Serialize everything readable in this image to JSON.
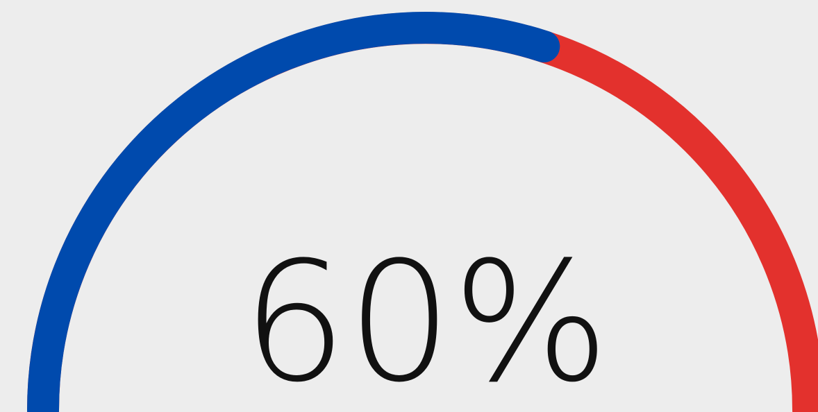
{
  "chart_data": {
    "type": "gauge",
    "value": 60,
    "value_label": "60%",
    "ylim": [
      0,
      100
    ],
    "color": "#004aad",
    "track_color": "#e3312d"
  }
}
